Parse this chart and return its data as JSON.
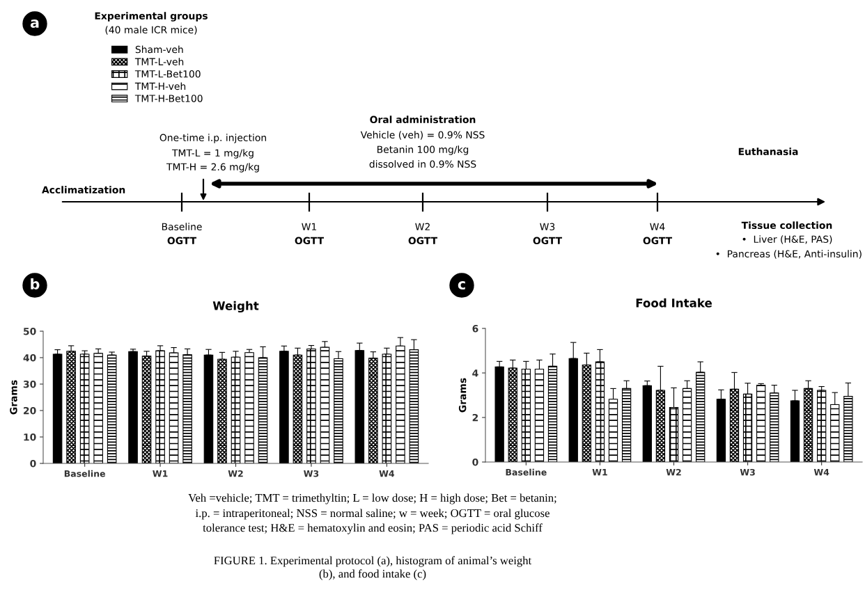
{
  "chart_data": [
    {
      "type": "other",
      "annotations": [
        "a",
        "Experimental groups",
        "(40 male ICR mice)",
        "One-time i.p. injection",
        "TMT-L = 1 mg/kg",
        "TMT-H = 2.6 mg/kg",
        "Acclimatization",
        "Oral administration",
        "Vehicle (veh) = 0.9% NSS",
        "Betanin 100 mg/kg",
        "dissolved in 0.9% NSS",
        "Euthanasia",
        "Baseline",
        "OGTT",
        "W1",
        "OGTT",
        "W2",
        "OGTT",
        "W3",
        "OGTT",
        "W4",
        "OGTT",
        "Tissue collection",
        "•  Liver (H&E, PAS)",
        "•  Pancreas (H&E, Anti-insulin)",
        "Veh =vehicle; TMT = trimethyltin; L = low dose; H = high dose; Bet = betanin;",
        "i.p. = intraperitoneal; NSS = normal saline; w = week; OGTT = oral glucose",
        "tolerance test; H&E = hematoxylin and eosin; PAS = periodic acid Schiff",
        "FIGURE 1. Experimental protocol (a), histogram of animal’s weight",
        "(b), and food intake (c)"
      ]
    },
    {
      "type": "bar",
      "title": "Weight",
      "ylabel": "Grams",
      "categories": [
        "Baseline",
        "W1",
        "W2",
        "W3",
        "W4"
      ],
      "ylim": [
        0,
        50
      ],
      "yticks": [
        0,
        10,
        20,
        30,
        40,
        50
      ],
      "legend": "top left",
      "annotations": [
        "b"
      ],
      "series": [
        {
          "name": "Sham-veh",
          "color": "#000000",
          "values": [
            41.3,
            42.3,
            41.0,
            42.4,
            42.7
          ],
          "errors": [
            [
              41.3,
              43.0
            ],
            [
              42.3,
              43.2
            ],
            [
              41.0,
              43.1
            ],
            [
              42.4,
              44.4
            ],
            [
              42.7,
              45.5
            ]
          ]
        },
        {
          "name": "TMT-L-veh",
          "color": "#000000",
          "values": [
            42.4,
            40.6,
            39.4,
            41.0,
            39.8
          ],
          "errors": [
            [
              42.4,
              44.5
            ],
            [
              40.6,
              42.4
            ],
            [
              39.4,
              42.0
            ],
            [
              41.0,
              43.6
            ],
            [
              39.8,
              42.2
            ]
          ]
        },
        {
          "name": "TMT-L-Bet100",
          "color": "#000000",
          "values": [
            41.3,
            42.6,
            40.2,
            43.3,
            41.3
          ],
          "errors": [
            [
              41.3,
              42.6
            ],
            [
              42.6,
              44.5
            ],
            [
              40.2,
              42.4
            ],
            [
              43.3,
              44.6
            ],
            [
              41.3,
              43.6
            ]
          ]
        },
        {
          "name": "TMT-H-veh",
          "color": "#000000",
          "values": [
            41.6,
            41.8,
            41.9,
            43.9,
            44.4
          ],
          "errors": [
            [
              41.6,
              43.3
            ],
            [
              41.8,
              43.8
            ],
            [
              41.9,
              43.1
            ],
            [
              43.9,
              46.1
            ],
            [
              44.4,
              47.6
            ]
          ]
        },
        {
          "name": "TMT-H-Bet100",
          "color": "#000000",
          "values": [
            41.0,
            41.1,
            40.0,
            39.6,
            43.0
          ],
          "errors": [
            [
              41.0,
              42.1
            ],
            [
              41.1,
              43.3
            ],
            [
              40.0,
              44.1
            ],
            [
              39.6,
              42.3
            ],
            [
              43.0,
              46.8
            ]
          ]
        }
      ]
    },
    {
      "type": "bar",
      "title": "Food Intake",
      "ylabel": "Grams",
      "categories": [
        "Baseline",
        "W1",
        "W2",
        "W3",
        "W4"
      ],
      "ylim": [
        0,
        6
      ],
      "yticks": [
        0,
        2,
        4,
        6
      ],
      "annotations": [
        "c"
      ],
      "series": [
        {
          "color": "#000000",
          "values": [
            4.27,
            4.65,
            3.43,
            2.82,
            2.75
          ],
          "errors": [
            [
              4.27,
              4.52
            ],
            [
              4.65,
              5.37
            ],
            [
              3.43,
              3.64
            ],
            [
              2.82,
              3.24
            ],
            [
              2.75,
              3.22
            ]
          ]
        },
        {
          "color": "#000000",
          "values": [
            4.22,
            4.36,
            3.22,
            3.27,
            3.3
          ],
          "errors": [
            [
              4.22,
              4.58
            ],
            [
              4.36,
              4.89
            ],
            [
              3.22,
              4.3
            ],
            [
              3.27,
              4.02
            ],
            [
              3.3,
              3.65
            ]
          ]
        },
        {
          "color": "#000000",
          "values": [
            4.17,
            4.5,
            2.45,
            3.05,
            3.22
          ],
          "errors": [
            [
              4.17,
              4.52
            ],
            [
              4.5,
              5.05
            ],
            [
              2.45,
              3.33
            ],
            [
              3.05,
              3.54
            ],
            [
              3.22,
              3.39
            ]
          ]
        },
        {
          "color": "#000000",
          "values": [
            4.17,
            2.82,
            3.3,
            3.45,
            2.58
          ],
          "errors": [
            [
              4.17,
              4.58
            ],
            [
              2.82,
              3.3
            ],
            [
              3.3,
              3.65
            ],
            [
              3.45,
              3.52
            ],
            [
              2.58,
              3.12
            ]
          ]
        },
        {
          "color": "#000000",
          "values": [
            4.3,
            3.3,
            4.03,
            3.1,
            2.95
          ],
          "errors": [
            [
              4.3,
              4.85
            ],
            [
              3.3,
              3.65
            ],
            [
              4.03,
              4.5
            ],
            [
              3.1,
              3.45
            ],
            [
              2.95,
              3.55
            ]
          ]
        }
      ]
    }
  ]
}
